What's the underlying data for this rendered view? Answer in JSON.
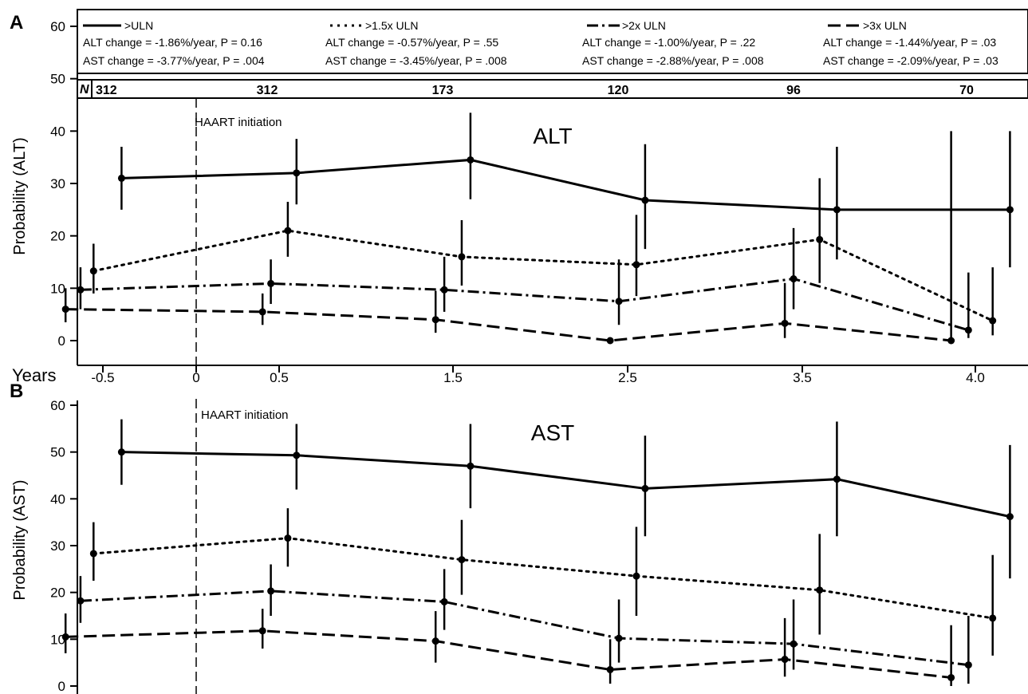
{
  "chart_data": [
    {
      "type": "line",
      "panel": "A",
      "title": "ALT",
      "xlabel": "Years",
      "ylabel": "Probability (ALT)",
      "ylim": [
        0,
        60
      ],
      "yticks": [
        "0",
        "10",
        "20",
        "30",
        "40",
        "50",
        "60"
      ],
      "xticks": [
        "-0.5",
        "0",
        "0.5",
        "1.5",
        "2.5",
        "3.5",
        "4.0"
      ],
      "annotation": "HAART initiation",
      "series": [
        {
          "name": ">ULN",
          "style": "solid",
          "points": [
            {
              "x": -0.4,
              "y": 31,
              "low": 25,
              "high": 37
            },
            {
              "x": 0.6,
              "y": 32,
              "low": 26,
              "high": 38.5
            },
            {
              "x": 1.6,
              "y": 34.5,
              "low": 27,
              "high": 43.5
            },
            {
              "x": 2.6,
              "y": 26.8,
              "low": 17.5,
              "high": 37.5
            },
            {
              "x": 3.6,
              "y": 25,
              "low": 15.5,
              "high": 37
            },
            {
              "x": 4.1,
              "y": 25,
              "low": 14,
              "high": 40
            }
          ]
        },
        {
          "name": ">1.5x ULN",
          "style": "dotted",
          "points": [
            {
              "x": -0.55,
              "y": 13.3,
              "low": 9,
              "high": 18.5
            },
            {
              "x": 0.55,
              "y": 21,
              "low": 16,
              "high": 26.5
            },
            {
              "x": 1.55,
              "y": 16,
              "low": 10.5,
              "high": 23
            },
            {
              "x": 2.55,
              "y": 14.5,
              "low": 8.5,
              "high": 24
            },
            {
              "x": 3.55,
              "y": 19.3,
              "low": 11,
              "high": 31
            },
            {
              "x": 4.05,
              "y": 3.8,
              "low": 1,
              "high": 14
            }
          ]
        },
        {
          "name": ">2x ULN",
          "style": "dashdot",
          "points": [
            {
              "x": -0.62,
              "y": 9.7,
              "low": 6,
              "high": 14
            },
            {
              "x": 0.45,
              "y": 10.9,
              "low": 7,
              "high": 15.5
            },
            {
              "x": 1.45,
              "y": 9.7,
              "low": 5.5,
              "high": 16
            },
            {
              "x": 2.45,
              "y": 7.5,
              "low": 3,
              "high": 15.5
            },
            {
              "x": 3.45,
              "y": 11.8,
              "low": 6,
              "high": 21.5
            },
            {
              "x": 3.98,
              "y": 2,
              "low": 0.5,
              "high": 13
            }
          ]
        },
        {
          "name": ">3x ULN",
          "style": "dashed",
          "points": [
            {
              "x": -0.7,
              "y": 6,
              "low": 3.5,
              "high": 10
            },
            {
              "x": 0.4,
              "y": 5.5,
              "low": 3,
              "high": 9
            },
            {
              "x": 1.4,
              "y": 4,
              "low": 1.5,
              "high": 9.5
            },
            {
              "x": 2.4,
              "y": 0,
              "low": 0,
              "high": 0
            },
            {
              "x": 3.4,
              "y": 3.3,
              "low": 0.5,
              "high": 11
            },
            {
              "x": 3.93,
              "y": 0,
              "low": 0,
              "high": 40
            }
          ]
        }
      ]
    },
    {
      "type": "line",
      "panel": "B",
      "title": "AST",
      "xlabel": "",
      "ylabel": "Probability (AST)",
      "ylim": [
        0,
        60
      ],
      "yticks": [
        "0",
        "10",
        "20",
        "30",
        "40",
        "50",
        "60"
      ],
      "annotation": "HAART initiation",
      "series": [
        {
          "name": ">ULN",
          "style": "solid",
          "points": [
            {
              "x": -0.4,
              "y": 50,
              "low": 43,
              "high": 57
            },
            {
              "x": 0.6,
              "y": 49.3,
              "low": 42,
              "high": 56
            },
            {
              "x": 1.6,
              "y": 47,
              "low": 38,
              "high": 56
            },
            {
              "x": 2.6,
              "y": 42.2,
              "low": 32,
              "high": 53.5
            },
            {
              "x": 3.6,
              "y": 44.2,
              "low": 32,
              "high": 56.5
            },
            {
              "x": 4.1,
              "y": 36.2,
              "low": 23,
              "high": 51.5
            }
          ]
        },
        {
          "name": ">1.5x ULN",
          "style": "dotted",
          "points": [
            {
              "x": -0.55,
              "y": 28.3,
              "low": 22.5,
              "high": 35
            },
            {
              "x": 0.55,
              "y": 31.6,
              "low": 25.5,
              "high": 38
            },
            {
              "x": 1.55,
              "y": 27,
              "low": 19.5,
              "high": 35.5
            },
            {
              "x": 2.55,
              "y": 23.5,
              "low": 15,
              "high": 34
            },
            {
              "x": 3.55,
              "y": 20.5,
              "low": 11,
              "high": 32.5
            },
            {
              "x": 4.05,
              "y": 14.5,
              "low": 6.5,
              "high": 28
            }
          ]
        },
        {
          "name": ">2x ULN",
          "style": "dashdot",
          "points": [
            {
              "x": -0.62,
              "y": 18.2,
              "low": 13.5,
              "high": 23.5
            },
            {
              "x": 0.45,
              "y": 20.3,
              "low": 15,
              "high": 26
            },
            {
              "x": 1.45,
              "y": 18,
              "low": 12,
              "high": 25
            },
            {
              "x": 2.45,
              "y": 10.2,
              "low": 5,
              "high": 18.5
            },
            {
              "x": 3.45,
              "y": 9,
              "low": 3.5,
              "high": 18.5
            },
            {
              "x": 3.98,
              "y": 4.5,
              "low": 0.5,
              "high": 15
            }
          ]
        },
        {
          "name": ">3x ULN",
          "style": "dashed",
          "points": [
            {
              "x": -0.7,
              "y": 10.5,
              "low": 7,
              "high": 15.5
            },
            {
              "x": 0.4,
              "y": 11.8,
              "low": 8,
              "high": 16.5
            },
            {
              "x": 1.4,
              "y": 9.6,
              "low": 5,
              "high": 16
            },
            {
              "x": 2.4,
              "y": 3.5,
              "low": 0.5,
              "high": 10
            },
            {
              "x": 3.4,
              "y": 5.7,
              "low": 2,
              "high": 14.5
            },
            {
              "x": 3.93,
              "y": 1.8,
              "low": 0,
              "high": 13
            }
          ]
        }
      ]
    }
  ],
  "legend": [
    {
      "label": ">ULN",
      "style": "solid",
      "alt_stat": "ALT change = -1.86%/year, P = 0.16",
      "ast_stat": "AST change = -3.77%/year, P = .004"
    },
    {
      "label": ">1.5x ULN",
      "style": "dotted",
      "alt_stat": "ALT change = -0.57%/year, P = .55",
      "ast_stat": "AST change = -3.45%/year, P = .008"
    },
    {
      "label": ">2x ULN",
      "style": "dashdot",
      "alt_stat": "ALT change = -1.00%/year, P = .22",
      "ast_stat": "AST change = -2.88%/year, P = .008"
    },
    {
      "label": ">3x ULN",
      "style": "dashed",
      "alt_stat": "ALT change = -1.44%/year, P = .03",
      "ast_stat": "AST change = -2.09%/year, P = .03"
    }
  ],
  "n_row": {
    "label": "N",
    "values": [
      "312",
      "312",
      "173",
      "120",
      "96",
      "70"
    ]
  }
}
